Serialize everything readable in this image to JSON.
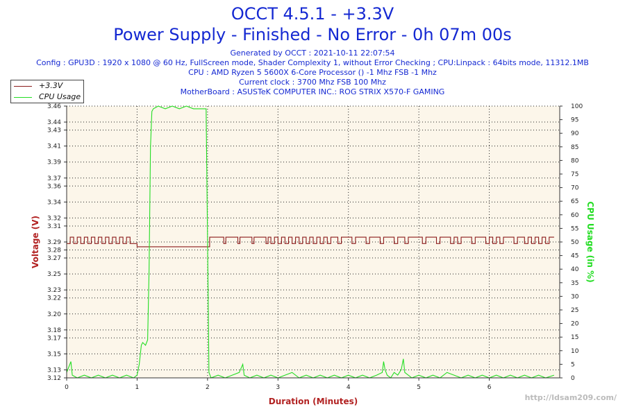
{
  "header": {
    "title": "OCCT 4.5.1 - +3.3V",
    "subtitle": "Power Supply - Finished - No Error - 0h 07m 00s",
    "generated": "Generated by OCCT : 2021-10-11 22:07:54",
    "config": "Config : GPU3D : 1920 x 1080 @ 60 Hz, FullScreen mode, Shader Complexity 1, without Error Checking ; CPU:Linpack : 64bits mode, 11312.1MB",
    "cpu": "CPU : AMD Ryzen 5 5600X 6-Core Processor () -1 Mhz FSB -1 Mhz",
    "clock": "Current clock : 3700 Mhz FSB 100 Mhz",
    "motherboard": "MotherBoard : ASUSTeK COMPUTER INC.: ROG STRIX X570-F GAMING"
  },
  "colors": {
    "voltage": "#8b1a1a",
    "cpu": "#22dd22",
    "title": "#1428d2",
    "plot_bg": "#fcf6ea",
    "axis_title": "#b22222"
  },
  "chart_data": {
    "type": "line",
    "title": "OCCT 4.5.1 - +3.3V",
    "xlabel": "Duration (Minutes)",
    "ylabel": "Voltage (V)",
    "y2label": "CPU Usage (in %)",
    "xlim": [
      0,
      7
    ],
    "ylim": [
      3.12,
      3.46
    ],
    "y2lim": [
      0,
      100
    ],
    "grid": true,
    "legend_position": "top-left",
    "x_ticks": [
      0,
      1,
      2,
      3,
      4,
      5,
      6
    ],
    "y_ticks": [
      3.12,
      3.13,
      3.15,
      3.17,
      3.18,
      3.2,
      3.22,
      3.23,
      3.25,
      3.27,
      3.28,
      3.29,
      3.31,
      3.32,
      3.34,
      3.36,
      3.37,
      3.39,
      3.41,
      3.43,
      3.44,
      3.46
    ],
    "y2_ticks": [
      0,
      5,
      10,
      15,
      20,
      25,
      30,
      35,
      40,
      45,
      50,
      55,
      60,
      65,
      70,
      75,
      80,
      85,
      90,
      95,
      100
    ],
    "series": [
      {
        "name": "+3.3V",
        "axis": "left",
        "points": [
          [
            0.0,
            3.288
          ],
          [
            0.05,
            3.296
          ],
          [
            0.1,
            3.288
          ],
          [
            0.15,
            3.296
          ],
          [
            0.2,
            3.288
          ],
          [
            0.25,
            3.296
          ],
          [
            0.3,
            3.288
          ],
          [
            0.35,
            3.296
          ],
          [
            0.4,
            3.288
          ],
          [
            0.45,
            3.296
          ],
          [
            0.5,
            3.288
          ],
          [
            0.55,
            3.296
          ],
          [
            0.6,
            3.288
          ],
          [
            0.65,
            3.296
          ],
          [
            0.7,
            3.288
          ],
          [
            0.75,
            3.296
          ],
          [
            0.8,
            3.288
          ],
          [
            0.85,
            3.296
          ],
          [
            0.9,
            3.288
          ],
          [
            0.95,
            3.288
          ],
          [
            1.0,
            3.284
          ],
          [
            1.5,
            3.284
          ],
          [
            2.0,
            3.284
          ],
          [
            2.03,
            3.296
          ],
          [
            2.2,
            3.296
          ],
          [
            2.23,
            3.288
          ],
          [
            2.26,
            3.296
          ],
          [
            2.4,
            3.296
          ],
          [
            2.43,
            3.288
          ],
          [
            2.46,
            3.296
          ],
          [
            2.6,
            3.296
          ],
          [
            2.63,
            3.288
          ],
          [
            2.66,
            3.296
          ],
          [
            2.8,
            3.296
          ],
          [
            2.83,
            3.288
          ],
          [
            2.86,
            3.296
          ],
          [
            2.9,
            3.288
          ],
          [
            2.95,
            3.296
          ],
          [
            3.0,
            3.288
          ],
          [
            3.05,
            3.296
          ],
          [
            3.1,
            3.288
          ],
          [
            3.15,
            3.296
          ],
          [
            3.2,
            3.288
          ],
          [
            3.25,
            3.296
          ],
          [
            3.3,
            3.288
          ],
          [
            3.35,
            3.296
          ],
          [
            3.4,
            3.288
          ],
          [
            3.45,
            3.296
          ],
          [
            3.5,
            3.288
          ],
          [
            3.55,
            3.296
          ],
          [
            3.6,
            3.288
          ],
          [
            3.65,
            3.296
          ],
          [
            3.7,
            3.288
          ],
          [
            3.75,
            3.296
          ],
          [
            3.8,
            3.296
          ],
          [
            3.85,
            3.288
          ],
          [
            3.9,
            3.296
          ],
          [
            4.0,
            3.296
          ],
          [
            4.05,
            3.288
          ],
          [
            4.1,
            3.296
          ],
          [
            4.2,
            3.296
          ],
          [
            4.25,
            3.288
          ],
          [
            4.3,
            3.296
          ],
          [
            4.4,
            3.296
          ],
          [
            4.45,
            3.288
          ],
          [
            4.5,
            3.296
          ],
          [
            4.6,
            3.296
          ],
          [
            4.65,
            3.288
          ],
          [
            4.7,
            3.296
          ],
          [
            4.8,
            3.288
          ],
          [
            4.85,
            3.296
          ],
          [
            4.9,
            3.296
          ],
          [
            5.0,
            3.296
          ],
          [
            5.05,
            3.288
          ],
          [
            5.1,
            3.296
          ],
          [
            5.2,
            3.296
          ],
          [
            5.25,
            3.288
          ],
          [
            5.3,
            3.296
          ],
          [
            5.4,
            3.296
          ],
          [
            5.45,
            3.288
          ],
          [
            5.5,
            3.296
          ],
          [
            5.55,
            3.288
          ],
          [
            5.6,
            3.296
          ],
          [
            5.7,
            3.296
          ],
          [
            5.75,
            3.288
          ],
          [
            5.8,
            3.296
          ],
          [
            5.9,
            3.296
          ],
          [
            5.95,
            3.288
          ],
          [
            6.0,
            3.296
          ],
          [
            6.05,
            3.288
          ],
          [
            6.1,
            3.296
          ],
          [
            6.15,
            3.288
          ],
          [
            6.2,
            3.296
          ],
          [
            6.3,
            3.296
          ],
          [
            6.35,
            3.288
          ],
          [
            6.4,
            3.296
          ],
          [
            6.5,
            3.288
          ],
          [
            6.55,
            3.296
          ],
          [
            6.6,
            3.288
          ],
          [
            6.65,
            3.296
          ],
          [
            6.7,
            3.288
          ],
          [
            6.75,
            3.296
          ],
          [
            6.8,
            3.288
          ],
          [
            6.85,
            3.296
          ],
          [
            6.92,
            3.296
          ]
        ]
      },
      {
        "name": "CPU Usage",
        "axis": "right",
        "points": [
          [
            0.0,
            2
          ],
          [
            0.06,
            6
          ],
          [
            0.08,
            1
          ],
          [
            0.15,
            0
          ],
          [
            0.25,
            1
          ],
          [
            0.35,
            0
          ],
          [
            0.45,
            1
          ],
          [
            0.55,
            0
          ],
          [
            0.65,
            1
          ],
          [
            0.75,
            0
          ],
          [
            0.85,
            1
          ],
          [
            0.95,
            0
          ],
          [
            1.0,
            1
          ],
          [
            1.03,
            5
          ],
          [
            1.06,
            12
          ],
          [
            1.08,
            13
          ],
          [
            1.12,
            12
          ],
          [
            1.15,
            14
          ],
          [
            1.17,
            40
          ],
          [
            1.19,
            85
          ],
          [
            1.21,
            98
          ],
          [
            1.23,
            99
          ],
          [
            1.3,
            100
          ],
          [
            1.4,
            99
          ],
          [
            1.5,
            100
          ],
          [
            1.6,
            99
          ],
          [
            1.7,
            100
          ],
          [
            1.8,
            99
          ],
          [
            1.9,
            99
          ],
          [
            1.98,
            99
          ],
          [
            2.0,
            50
          ],
          [
            2.02,
            2
          ],
          [
            2.05,
            0
          ],
          [
            2.15,
            1
          ],
          [
            2.25,
            0
          ],
          [
            2.35,
            1
          ],
          [
            2.45,
            2
          ],
          [
            2.5,
            5
          ],
          [
            2.52,
            1
          ],
          [
            2.6,
            0
          ],
          [
            2.7,
            1
          ],
          [
            2.8,
            0
          ],
          [
            2.9,
            1
          ],
          [
            3.0,
            0
          ],
          [
            3.1,
            1
          ],
          [
            3.2,
            2
          ],
          [
            3.3,
            0
          ],
          [
            3.4,
            1
          ],
          [
            3.5,
            0
          ],
          [
            3.6,
            1
          ],
          [
            3.7,
            0
          ],
          [
            3.8,
            1
          ],
          [
            3.9,
            0
          ],
          [
            4.0,
            1
          ],
          [
            4.1,
            0
          ],
          [
            4.2,
            1
          ],
          [
            4.3,
            0
          ],
          [
            4.4,
            1
          ],
          [
            4.48,
            2
          ],
          [
            4.5,
            6
          ],
          [
            4.52,
            3
          ],
          [
            4.55,
            1
          ],
          [
            4.6,
            0
          ],
          [
            4.65,
            2
          ],
          [
            4.7,
            1
          ],
          [
            4.75,
            3
          ],
          [
            4.78,
            7
          ],
          [
            4.8,
            2
          ],
          [
            4.85,
            1
          ],
          [
            4.9,
            0
          ],
          [
            5.0,
            1
          ],
          [
            5.1,
            0
          ],
          [
            5.2,
            1
          ],
          [
            5.3,
            0
          ],
          [
            5.4,
            2
          ],
          [
            5.5,
            1
          ],
          [
            5.6,
            0
          ],
          [
            5.7,
            1
          ],
          [
            5.8,
            0
          ],
          [
            5.9,
            1
          ],
          [
            6.0,
            0
          ],
          [
            6.1,
            1
          ],
          [
            6.2,
            0
          ],
          [
            6.3,
            1
          ],
          [
            6.4,
            0
          ],
          [
            6.5,
            1
          ],
          [
            6.6,
            0
          ],
          [
            6.7,
            1
          ],
          [
            6.8,
            0
          ],
          [
            6.92,
            1
          ]
        ]
      }
    ]
  },
  "watermark": "http://ldsam209.com/"
}
